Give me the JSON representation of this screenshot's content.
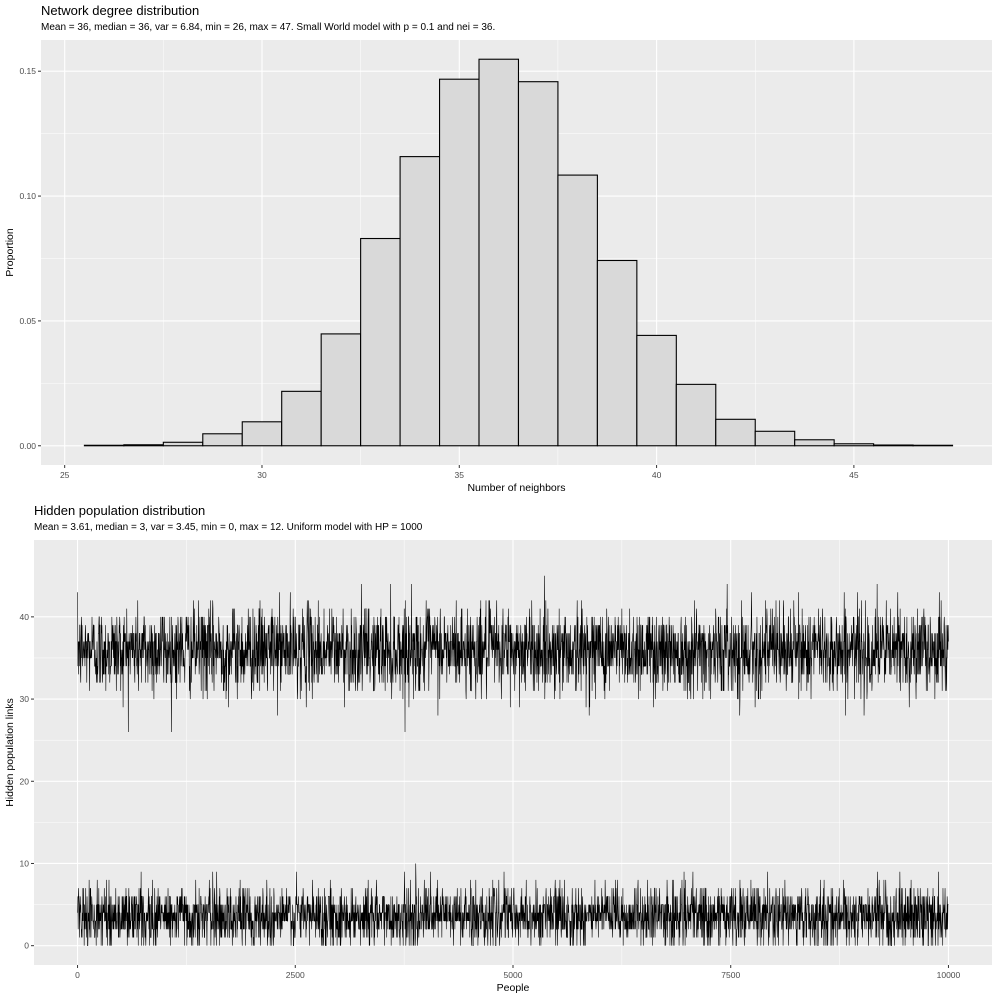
{
  "chart_data": [
    {
      "type": "bar",
      "title": "Network degree distribution",
      "subtitle": "Mean = 36, median = 36, var = 6.84, min = 26, max = 47. Small World model with p = 0.1 and nei = 36.",
      "xlabel": "Number of neighbors",
      "ylabel": "Proportion",
      "x": [
        26,
        27,
        28,
        29,
        30,
        31,
        32,
        33,
        34,
        35,
        36,
        37,
        38,
        39,
        40,
        41,
        42,
        43,
        44,
        45,
        46,
        47
      ],
      "values": [
        0.0002,
        0.0004,
        0.0014,
        0.0048,
        0.0096,
        0.0218,
        0.0448,
        0.083,
        0.1158,
        0.1468,
        0.1548,
        0.1458,
        0.1084,
        0.0742,
        0.0442,
        0.0246,
        0.0106,
        0.0058,
        0.0024,
        0.0008,
        0.0003,
        0.0002
      ],
      "xlim": [
        24.4,
        48.5
      ],
      "ylim": [
        -0.0077,
        0.1625
      ],
      "xticks": [
        25,
        30,
        35,
        40,
        45
      ],
      "yticks": [
        0.0,
        0.05,
        0.1,
        0.15
      ],
      "ytick_labels": [
        "0.00",
        "0.05",
        "0.10",
        "0.15"
      ],
      "bar_fill": "#d9d9d9",
      "bar_stroke": "#000000",
      "panel_bg": "#ebebeb",
      "grid": true
    },
    {
      "type": "line",
      "title": "Hidden population distribution",
      "subtitle": "Mean = 3.61, median = 3, var = 3.45, min = 0, max = 12. Uniform model with HP = 1000",
      "xlabel": "People",
      "ylabel": "Hidden population links",
      "xlim": [
        -500,
        10500
      ],
      "ylim": [
        -2.35,
        49.35
      ],
      "xticks": [
        0,
        2500,
        5000,
        7500,
        10000
      ],
      "yticks": [
        0,
        10,
        20,
        30,
        40
      ],
      "series": [
        {
          "n": 10000,
          "x_start": 1,
          "x_end": 10000,
          "mean": 36,
          "var": 6.84,
          "min": 26,
          "max": 47
        },
        {
          "n": 10000,
          "x_start": 1,
          "x_end": 10000,
          "mean": 3.61,
          "median": 3,
          "var": 3.45,
          "min": 0,
          "max": 12
        }
      ],
      "line_color": "#000000",
      "panel_bg": "#ebebeb",
      "grid": true
    }
  ]
}
